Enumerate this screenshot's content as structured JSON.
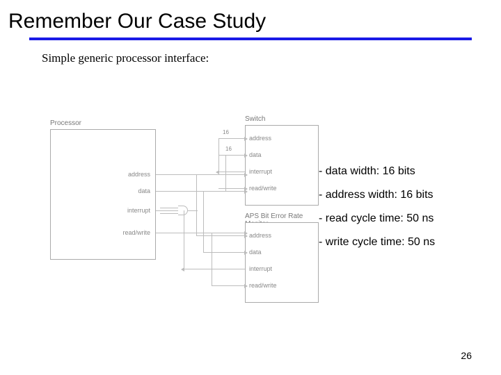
{
  "title": "Remember Our Case Study",
  "subtitle": "Simple generic processor interface:",
  "title_rule_color": "#1a1ae6",
  "page_number": "26",
  "specs": [
    "- data width: 16 bits",
    "- address width: 16 bits",
    "- read cycle time: 50 ns",
    "- write cycle time: 50 ns"
  ],
  "diagram": {
    "type": "block-diagram",
    "blocks": {
      "processor": {
        "label": "Processor",
        "ports": [
          "address",
          "data",
          "interrupt",
          "read/write"
        ]
      },
      "switch": {
        "label": "Switch",
        "ports": [
          "address",
          "data",
          "interrupt",
          "read/write"
        ]
      },
      "monitor": {
        "label": "APS Bit Error Rate Monitor",
        "ports": [
          "address",
          "data",
          "interrupt",
          "read/write"
        ]
      }
    },
    "bus_widths": {
      "address": "16",
      "data": "16"
    },
    "colors": {
      "box_border": "#aaaaaa",
      "wire": "#bcbcbc",
      "text": "#888888",
      "background": "#ffffff"
    }
  }
}
